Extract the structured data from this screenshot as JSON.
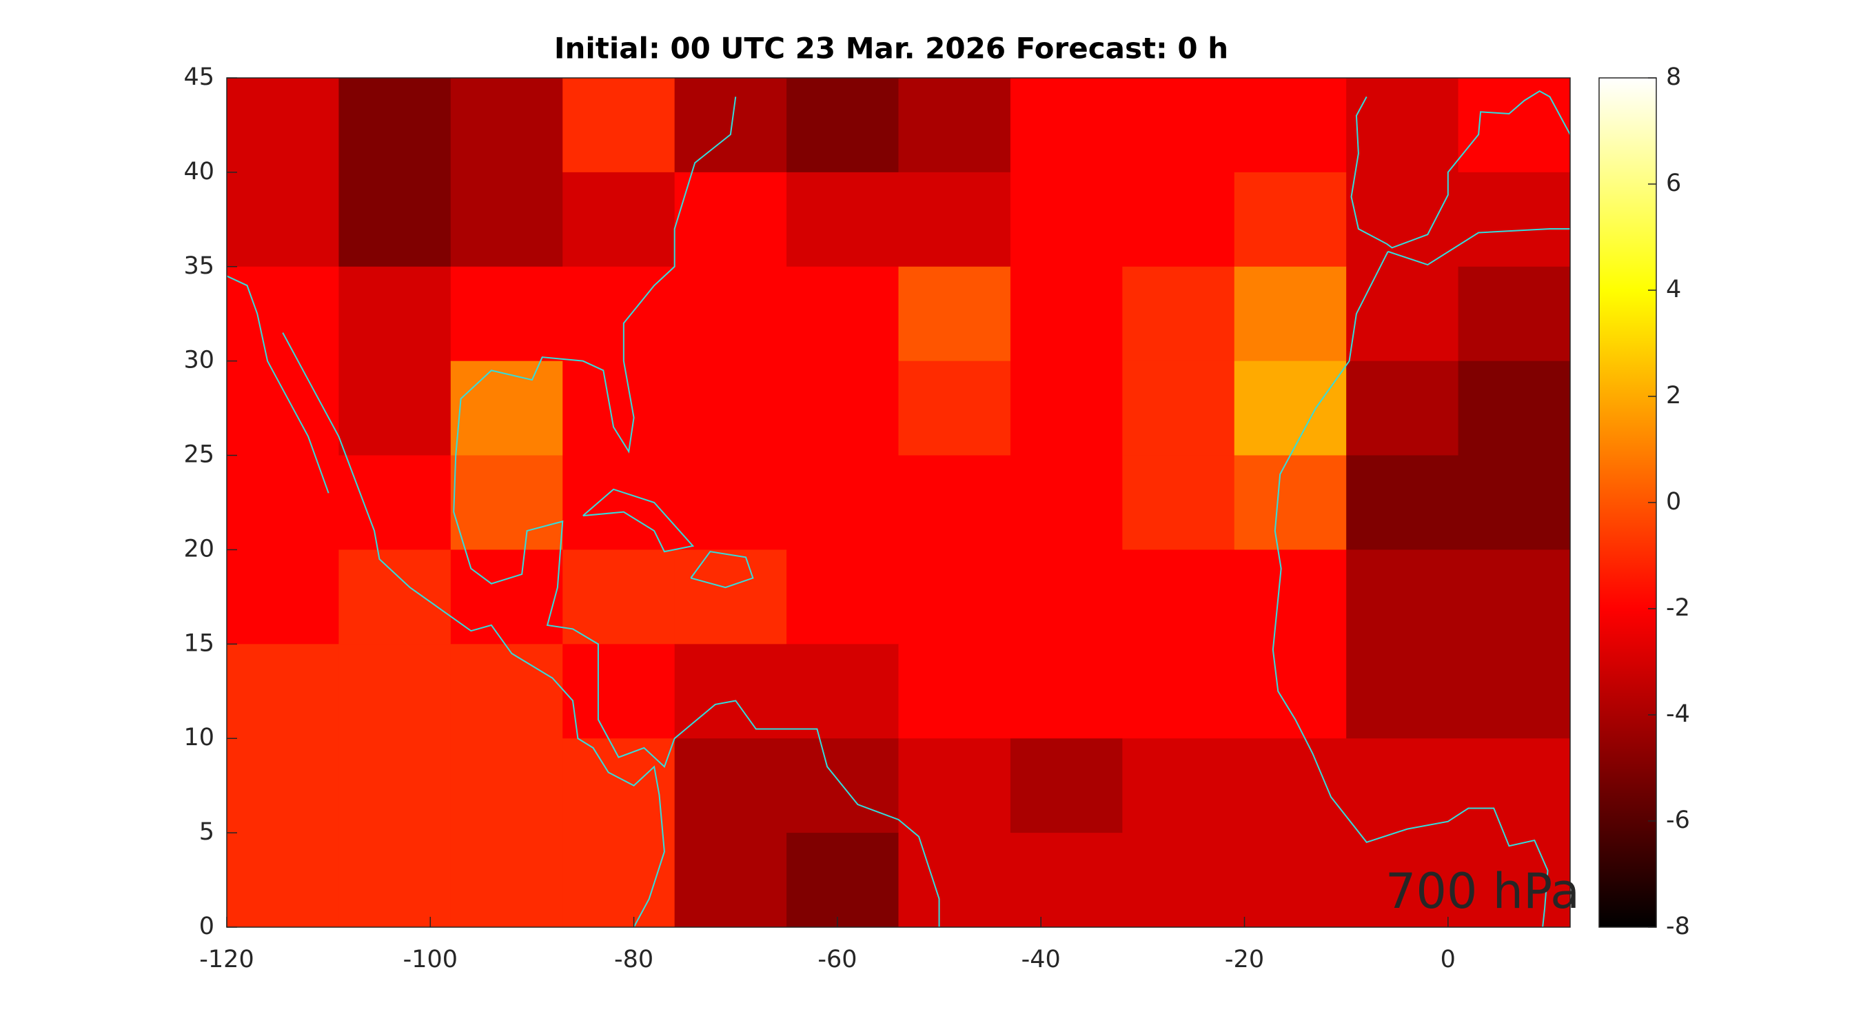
{
  "chart_data": {
    "type": "heatmap",
    "title": "Initial: 00 UTC 23 Mar. 2026 Forecast: 0 h",
    "annotation": "700 hPa",
    "annotation_color": "#00ff00",
    "colormap": "hot",
    "coastline_color": "#33dddd",
    "xlim": [
      -120,
      12
    ],
    "ylim": [
      0,
      45
    ],
    "xticks": [
      -120,
      -100,
      -80,
      -60,
      -40,
      -20,
      0
    ],
    "yticks": [
      0,
      5,
      10,
      15,
      20,
      25,
      30,
      35,
      40,
      45
    ],
    "clim": [
      -8,
      8
    ],
    "cticks": [
      -8,
      -6,
      -4,
      -2,
      0,
      2,
      4,
      6,
      8
    ],
    "xbins": [
      -120,
      -109,
      -98,
      -87,
      -76,
      -65,
      -54,
      -43,
      -32,
      -21,
      -10,
      1,
      12
    ],
    "ybins": [
      45,
      40,
      35,
      30,
      25,
      20,
      15,
      10,
      5,
      0
    ],
    "values": [
      [
        -3,
        -5,
        -4,
        -1,
        -4,
        -5,
        -4,
        -2,
        -2,
        -2,
        -3,
        -2
      ],
      [
        -3,
        -5,
        -4,
        -3,
        -2,
        -3,
        -3,
        -2,
        -2,
        -1,
        -3,
        -3
      ],
      [
        -2,
        -3,
        -2,
        -2,
        -2,
        -2,
        0,
        -2,
        -1,
        1,
        -3,
        -4
      ],
      [
        -2,
        -3,
        1,
        -2,
        -2,
        -2,
        -1,
        -2,
        -1,
        2,
        -4,
        -5
      ],
      [
        -2,
        -2,
        0,
        -2,
        -2,
        -2,
        -2,
        -2,
        -1,
        0,
        -5,
        -5
      ],
      [
        -2,
        -1,
        -2,
        -1,
        -1,
        -2,
        -2,
        -2,
        -2,
        -2,
        -4,
        -4
      ],
      [
        -1,
        -1,
        -1,
        -2,
        -3,
        -3,
        -2,
        -2,
        -2,
        -2,
        -4,
        -4
      ],
      [
        -1,
        -1,
        -1,
        -1,
        -4,
        -4,
        -3,
        -4,
        -3,
        -3,
        -3,
        -3
      ],
      [
        -1,
        -1,
        -1,
        -1,
        -4,
        -5,
        -3,
        -3,
        -3,
        -3,
        -3,
        -3
      ]
    ]
  }
}
